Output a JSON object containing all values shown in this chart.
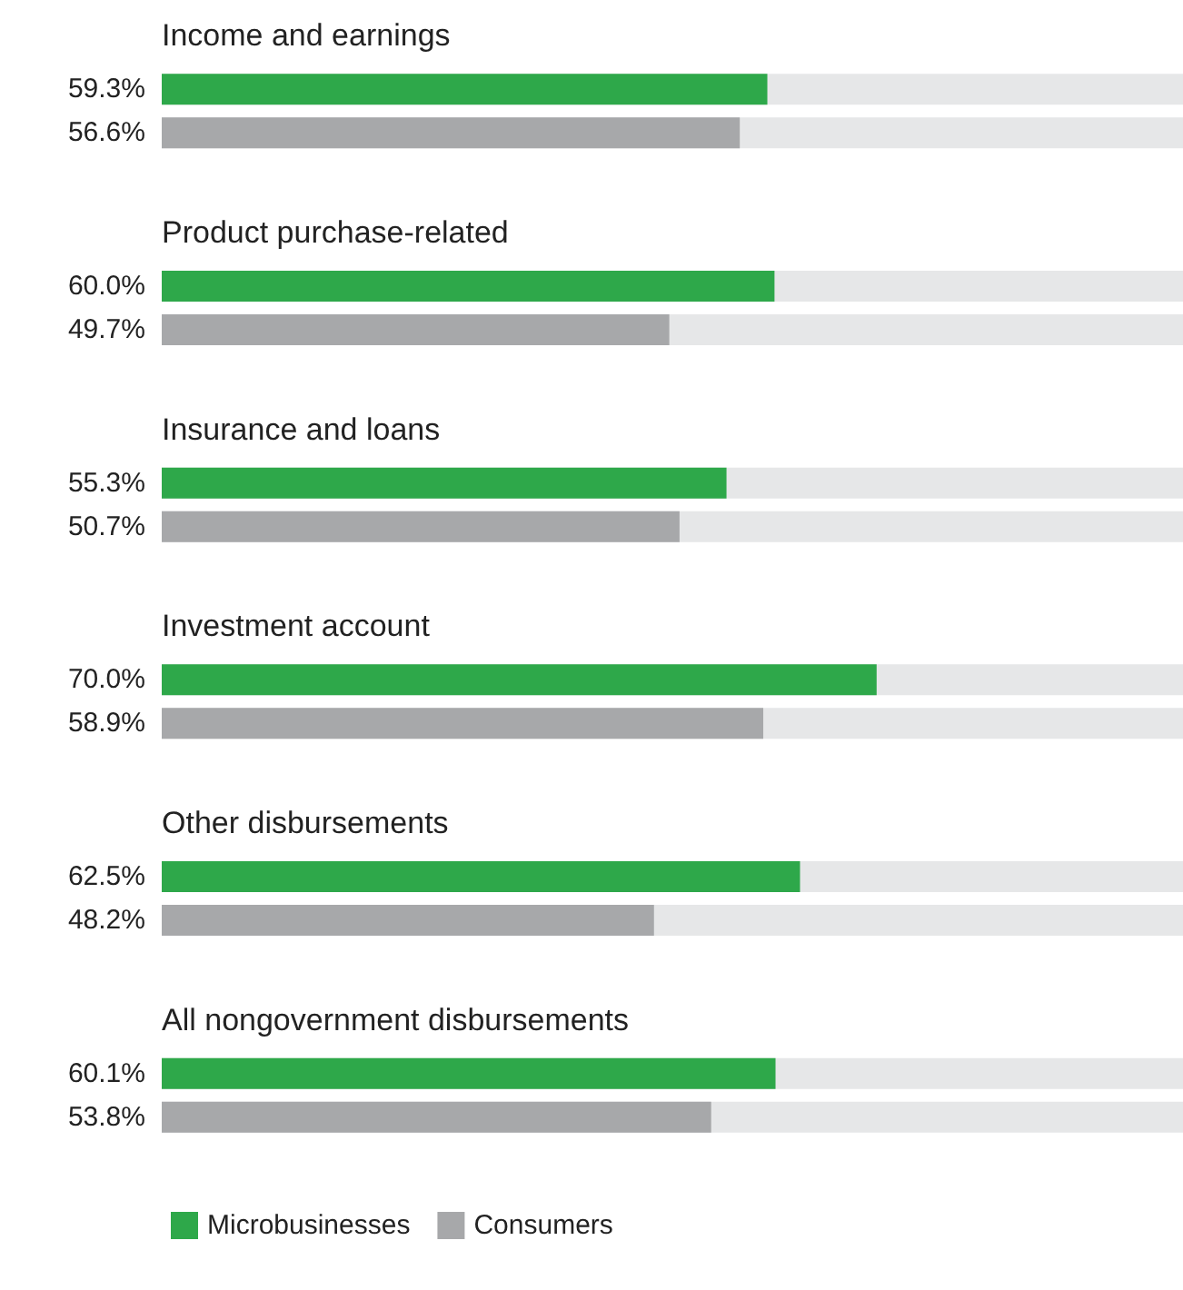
{
  "chart_data": {
    "type": "bar",
    "orientation": "horizontal",
    "categories": [
      "Income and earnings",
      "Product purchase-related",
      "Insurance and loans",
      "Investment account",
      "Other disbursements",
      "All nongovernment disbursements"
    ],
    "series": [
      {
        "name": "Microbusinesses",
        "color": "#2ea84a",
        "values": [
          59.3,
          60.0,
          55.3,
          70.0,
          62.5,
          60.1
        ],
        "value_labels": [
          "59.3%",
          "60.0%",
          "55.3%",
          "70.0%",
          "62.5%",
          "60.1%"
        ]
      },
      {
        "name": "Consumers",
        "color": "#a7a8aa",
        "values": [
          56.6,
          49.7,
          50.7,
          58.9,
          48.2,
          53.8
        ],
        "value_labels": [
          "56.6%",
          "49.7%",
          "50.7%",
          "58.9%",
          "48.2%",
          "53.8%"
        ]
      }
    ],
    "xlim": [
      0,
      100
    ],
    "tick_labels": false,
    "grid": false,
    "legend": "bottom left"
  }
}
